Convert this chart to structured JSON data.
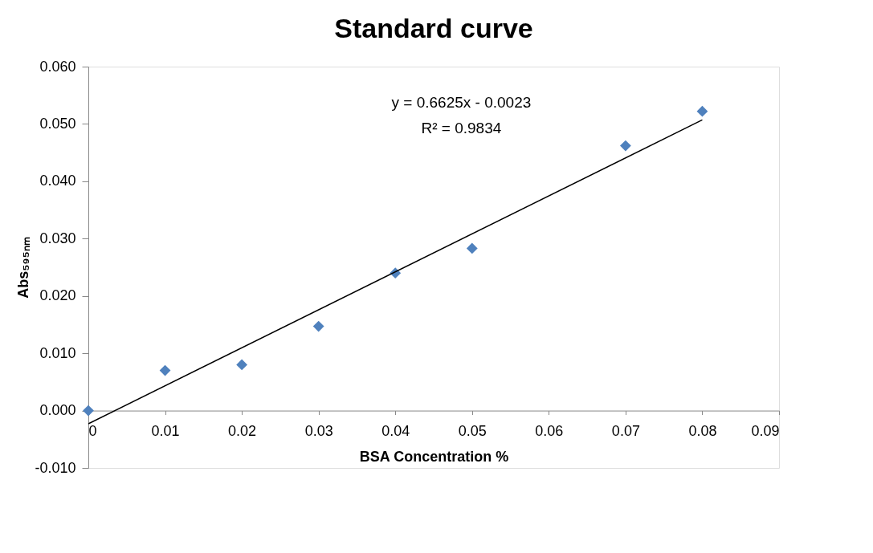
{
  "chart_data": {
    "type": "scatter",
    "title": "Standard curve",
    "xlabel": "BSA Concentration %",
    "ylabel": "Abs₅₉₅ₙₘ",
    "x": [
      0,
      0.01,
      0.02,
      0.03,
      0.04,
      0.05,
      0.07,
      0.08
    ],
    "series": [
      {
        "type": "scatter",
        "color": "#4f81bd",
        "marker": "diamond",
        "values": [
          0.0,
          0.007,
          0.008,
          0.0147,
          0.024,
          0.0283,
          0.0462,
          0.0522
        ]
      },
      {
        "type": "line",
        "color": "#000000",
        "line_style": "solid",
        "marker": "none",
        "x": [
          0,
          0.08
        ],
        "values": [
          -0.0023,
          0.0507
        ]
      }
    ],
    "annotations": [
      "y = 0.6625x - 0.0023",
      "R² = 0.9834"
    ],
    "xlim": [
      0,
      0.09
    ],
    "xticks": [
      {
        "value": 0,
        "label": "0"
      },
      0.01,
      0.02,
      0.03,
      0.04,
      0.05,
      0.06,
      0.07,
      0.08,
      0.09
    ],
    "ylim": [
      -0.01,
      0.06
    ],
    "yticks": [
      {
        "value": -0.01,
        "label": "-0.010"
      },
      {
        "value": 0,
        "label": "0.000"
      },
      {
        "value": 0.01,
        "label": "0.010"
      },
      {
        "value": 0.02,
        "label": "0.020"
      },
      {
        "value": 0.03,
        "label": "0.030"
      },
      {
        "value": 0.04,
        "label": "0.040"
      },
      {
        "value": 0.05,
        "label": "0.050"
      },
      {
        "value": 0.06,
        "label": "0.060"
      }
    ],
    "grid": false
  }
}
